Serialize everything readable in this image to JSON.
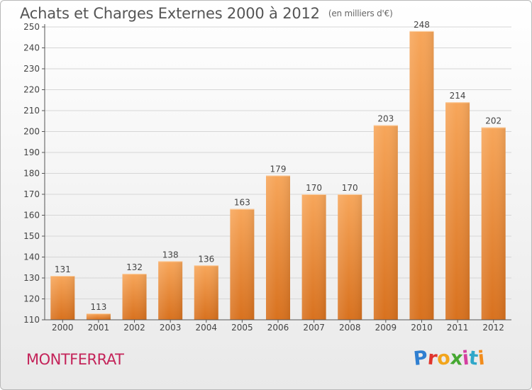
{
  "header": {
    "title": "Achats et Charges Externes 2000 à 2012",
    "subtitle": "(en milliers d'€)"
  },
  "footer": {
    "commune": "MONTFERRAT",
    "logo_text": "Proxiti"
  },
  "colors": {
    "bar_top": "#f7a65a",
    "bar_bottom": "#d8711e",
    "commune": "#c4245a"
  },
  "chart_data": {
    "type": "bar",
    "categories": [
      "2000",
      "2001",
      "2002",
      "2003",
      "2004",
      "2005",
      "2006",
      "2007",
      "2008",
      "2009",
      "2010",
      "2011",
      "2012"
    ],
    "values": [
      131,
      113,
      132,
      138,
      136,
      163,
      179,
      170,
      170,
      203,
      248,
      214,
      202
    ],
    "ylim": [
      110,
      250
    ],
    "yticks": [
      110,
      120,
      130,
      140,
      150,
      160,
      170,
      180,
      190,
      200,
      210,
      220,
      230,
      240,
      250
    ],
    "grid": true,
    "legend": "none"
  }
}
